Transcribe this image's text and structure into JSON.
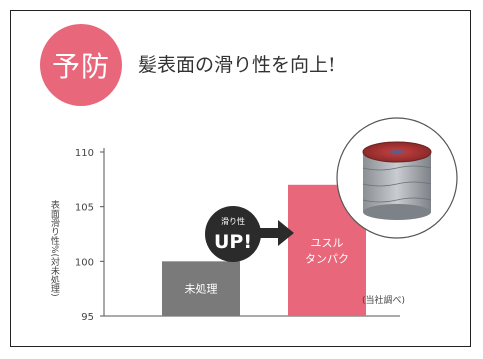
{
  "header": {
    "badge_text": "予防",
    "headline": "髪表面の滑り性を向上!"
  },
  "callout": {
    "small_text": "滑り性",
    "big_text": "UP!"
  },
  "source_note": "(当社調べ)",
  "colors": {
    "accent_pink": "#e9677a",
    "gray_bar": "#7a7a7a",
    "callout_dark": "#2b2b2b"
  },
  "chart_data": {
    "type": "bar",
    "title": "",
    "xlabel": "",
    "ylabel": "表面滑り性%(対未処理)",
    "categories": [
      "未処理",
      "ユスル タンパク"
    ],
    "values": [
      100,
      107
    ],
    "ylim": [
      95,
      110
    ],
    "yticks": [
      95,
      100,
      105,
      110
    ],
    "grid": false,
    "bar_colors": [
      "#7a7a7a",
      "#e9677a"
    ]
  }
}
